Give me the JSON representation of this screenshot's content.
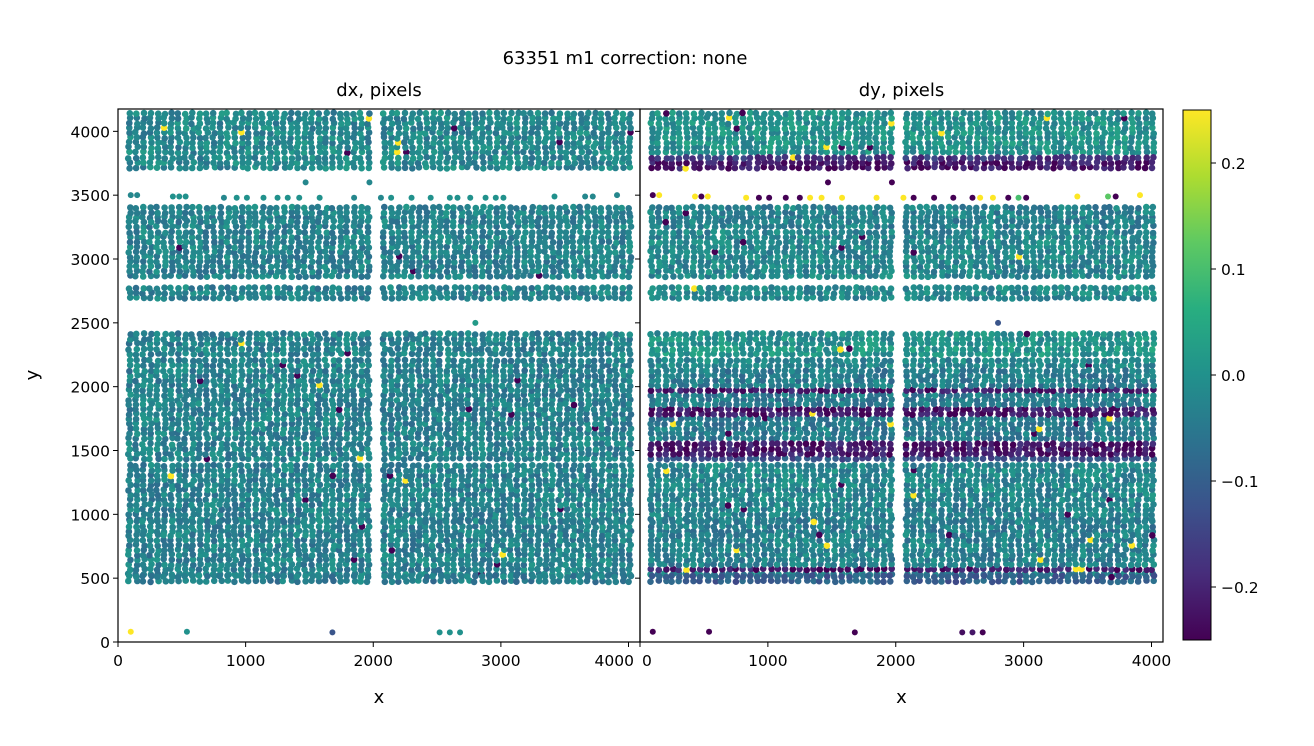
{
  "chart_data": {
    "type": "scatter",
    "title": "63351 m1  correction: none",
    "panels": [
      {
        "key": "dx",
        "title": "dx, pixels",
        "xlabel": "x",
        "ylabel": "y"
      },
      {
        "key": "dy",
        "title": "dy, pixels",
        "xlabel": "x",
        "ylabel": ""
      }
    ],
    "xlim": [
      0,
      4090
    ],
    "ylim": [
      0,
      4175
    ],
    "xticks": [
      0,
      1000,
      2000,
      3000,
      4000
    ],
    "xtick_labels": [
      "0",
      "1000",
      "2000",
      "3000",
      "4000"
    ],
    "yticks": [
      0,
      500,
      1000,
      1500,
      2000,
      2500,
      3000,
      3500,
      4000
    ],
    "ytick_labels": [
      "0",
      "500",
      "1000",
      "1500",
      "2000",
      "2500",
      "3000",
      "3500",
      "4000"
    ],
    "colorbar": {
      "colormap": "viridis",
      "range": [
        -0.25,
        0.25
      ],
      "ticks": [
        -0.2,
        -0.1,
        0.0,
        0.1,
        0.2
      ],
      "tick_labels": [
        "−0.2",
        "−0.1",
        "0.0",
        "0.1",
        "0.2"
      ]
    },
    "x_segments": [
      [
        80,
        2000
      ],
      [
        2075,
        4030
      ]
    ],
    "bands": [
      {
        "y": [
          3830,
          4160
        ],
        "dx": -0.02,
        "dy": 0.0
      },
      {
        "y": [
          3710,
          3810
        ],
        "dx": -0.02,
        "dy": -0.17
      },
      {
        "y": [
          3320,
          3400
        ],
        "dx": -0.03,
        "dy": -0.03
      },
      {
        "y": [
          3250,
          3305
        ],
        "dx": -0.03,
        "dy": -0.03
      },
      {
        "y": [
          3165,
          3240
        ],
        "dx": -0.03,
        "dy": -0.02
      },
      {
        "y": [
          2860,
          3150
        ],
        "dx": -0.03,
        "dy": -0.02
      },
      {
        "y": [
          2690,
          2800
        ],
        "dx": -0.03,
        "dy": -0.02
      },
      {
        "y": [
          2330,
          2430
        ],
        "dx": -0.03,
        "dy": 0.0
      },
      {
        "y": [
          2250,
          2315
        ],
        "dx": -0.03,
        "dy": 0.01
      },
      {
        "y": [
          2160,
          2235
        ],
        "dx": -0.03,
        "dy": -0.02
      },
      {
        "y": [
          1890,
          2150
        ],
        "dx": -0.03,
        "dy": -0.04
      },
      {
        "y": [
          1590,
          1880
        ],
        "dx": -0.03,
        "dy": -0.04
      },
      {
        "y": [
          1430,
          1580
        ],
        "dx": -0.03,
        "dy": -0.12
      },
      {
        "y": [
          1110,
          1410
        ],
        "dx": -0.03,
        "dy": -0.02
      },
      {
        "y": [
          955,
          1090
        ],
        "dx": -0.03,
        "dy": -0.03
      },
      {
        "y": [
          860,
          940
        ],
        "dx": -0.03,
        "dy": -0.04
      },
      {
        "y": [
          525,
          845
        ],
        "dx": -0.03,
        "dy": -0.03
      },
      {
        "y": [
          470,
          515
        ],
        "dx": -0.04,
        "dy": -0.1
      }
    ],
    "dy_dark_stripes": [
      3730,
      1960,
      1790,
      1470,
      1530,
      560
    ],
    "isolated_points": [
      {
        "x": 100,
        "y": 80,
        "dx": 0.25,
        "dy": -0.25
      },
      {
        "x": 540,
        "y": 80,
        "dx": 0.0,
        "dy": -0.25
      },
      {
        "x": 1680,
        "y": 75,
        "dx": -0.12,
        "dy": -0.25
      },
      {
        "x": 2520,
        "y": 75,
        "dx": 0.0,
        "dy": -0.23
      },
      {
        "x": 2600,
        "y": 75,
        "dx": 0.0,
        "dy": -0.22
      },
      {
        "x": 2680,
        "y": 75,
        "dx": 0.0,
        "dy": -0.25
      },
      {
        "x": 2800,
        "y": 2500,
        "dx": 0.02,
        "dy": -0.12
      },
      {
        "x": 1470,
        "y": 3600,
        "dx": -0.02,
        "dy": -0.25
      },
      {
        "x": 1970,
        "y": 3600,
        "dx": -0.02,
        "dy": -0.25
      },
      {
        "x": 100,
        "y": 3500,
        "dx": -0.02,
        "dy": -0.25
      },
      {
        "x": 150,
        "y": 3500,
        "dx": -0.02,
        "dy": 0.25
      },
      {
        "x": 430,
        "y": 3490,
        "dx": 0.0,
        "dy": 0.25
      },
      {
        "x": 480,
        "y": 3490,
        "dx": 0.0,
        "dy": -0.25
      },
      {
        "x": 530,
        "y": 3490,
        "dx": 0.0,
        "dy": 0.25
      },
      {
        "x": 830,
        "y": 3480,
        "dx": -0.02,
        "dy": 0.25
      },
      {
        "x": 930,
        "y": 3480,
        "dx": 0.0,
        "dy": -0.25
      },
      {
        "x": 1010,
        "y": 3480,
        "dx": 0.0,
        "dy": -0.25
      },
      {
        "x": 1140,
        "y": 3480,
        "dx": 0.0,
        "dy": -0.25
      },
      {
        "x": 1250,
        "y": 3480,
        "dx": 0.0,
        "dy": -0.25
      },
      {
        "x": 1330,
        "y": 3480,
        "dx": 0.0,
        "dy": 0.25
      },
      {
        "x": 1420,
        "y": 3480,
        "dx": 0.0,
        "dy": 0.25
      },
      {
        "x": 1580,
        "y": 3480,
        "dx": 0.0,
        "dy": 0.25
      },
      {
        "x": 1850,
        "y": 3480,
        "dx": -0.02,
        "dy": 0.25
      },
      {
        "x": 2060,
        "y": 3480,
        "dx": -0.02,
        "dy": 0.25
      },
      {
        "x": 2140,
        "y": 3480,
        "dx": 0.0,
        "dy": -0.25
      },
      {
        "x": 2300,
        "y": 3480,
        "dx": 0.0,
        "dy": -0.25
      },
      {
        "x": 2450,
        "y": 3480,
        "dx": 0.0,
        "dy": -0.25
      },
      {
        "x": 2600,
        "y": 3480,
        "dx": 0.0,
        "dy": -0.25
      },
      {
        "x": 2660,
        "y": 3480,
        "dx": 0.0,
        "dy": 0.25
      },
      {
        "x": 2760,
        "y": 3480,
        "dx": 0.0,
        "dy": 0.25
      },
      {
        "x": 2880,
        "y": 3480,
        "dx": 0.0,
        "dy": -0.25
      },
      {
        "x": 2960,
        "y": 3480,
        "dx": 0.0,
        "dy": 0.1
      },
      {
        "x": 3020,
        "y": 3480,
        "dx": 0.0,
        "dy": -0.25
      },
      {
        "x": 3420,
        "y": 3490,
        "dx": 0.0,
        "dy": 0.25
      },
      {
        "x": 3660,
        "y": 3490,
        "dx": -0.02,
        "dy": 0.12
      },
      {
        "x": 3720,
        "y": 3490,
        "dx": -0.02,
        "dy": -0.25
      },
      {
        "x": 3910,
        "y": 3500,
        "dx": -0.02,
        "dy": 0.25
      }
    ]
  }
}
